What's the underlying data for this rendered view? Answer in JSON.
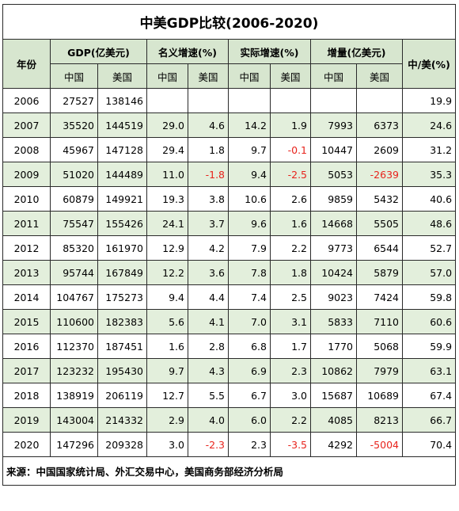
{
  "title": "中美GDP比较(2006-2020)",
  "headers": {
    "year": "年份",
    "gdp": "GDP(亿美元)",
    "nominal": "名义增速(%)",
    "real": "实际增速(%)",
    "increment": "增量(亿美元)",
    "ratio": "中/美(%)",
    "china": "中国",
    "usa": "美国"
  },
  "rows": [
    [
      "2006",
      "27527",
      "138146",
      "",
      "",
      "",
      "",
      "",
      "",
      "19.9"
    ],
    [
      "2007",
      "35520",
      "144519",
      "29.0",
      "4.6",
      "14.2",
      "1.9",
      "7993",
      "6373",
      "24.6"
    ],
    [
      "2008",
      "45967",
      "147128",
      "29.4",
      "1.8",
      "9.7",
      "-0.1",
      "10447",
      "2609",
      "31.2"
    ],
    [
      "2009",
      "51020",
      "144489",
      "11.0",
      "-1.8",
      "9.4",
      "-2.5",
      "5053",
      "-2639",
      "35.3"
    ],
    [
      "2010",
      "60879",
      "149921",
      "19.3",
      "3.8",
      "10.6",
      "2.6",
      "9859",
      "5432",
      "40.6"
    ],
    [
      "2011",
      "75547",
      "155426",
      "24.1",
      "3.7",
      "9.6",
      "1.6",
      "14668",
      "5505",
      "48.6"
    ],
    [
      "2012",
      "85320",
      "161970",
      "12.9",
      "4.2",
      "7.9",
      "2.2",
      "9773",
      "6544",
      "52.7"
    ],
    [
      "2013",
      "95744",
      "167849",
      "12.2",
      "3.6",
      "7.8",
      "1.8",
      "10424",
      "5879",
      "57.0"
    ],
    [
      "2014",
      "104767",
      "175273",
      "9.4",
      "4.4",
      "7.4",
      "2.5",
      "9023",
      "7424",
      "59.8"
    ],
    [
      "2015",
      "110600",
      "182383",
      "5.6",
      "4.1",
      "7.0",
      "3.1",
      "5833",
      "7110",
      "60.6"
    ],
    [
      "2016",
      "112370",
      "187451",
      "1.6",
      "2.8",
      "6.8",
      "1.7",
      "1770",
      "5068",
      "59.9"
    ],
    [
      "2017",
      "123232",
      "195430",
      "9.7",
      "4.3",
      "6.9",
      "2.3",
      "10862",
      "7979",
      "63.1"
    ],
    [
      "2018",
      "138919",
      "206119",
      "12.7",
      "5.5",
      "6.7",
      "3.0",
      "15687",
      "10689",
      "67.4"
    ],
    [
      "2019",
      "143004",
      "214332",
      "2.9",
      "4.0",
      "6.0",
      "2.2",
      "4085",
      "8213",
      "66.7"
    ],
    [
      "2020",
      "147296",
      "209328",
      "3.0",
      "-2.3",
      "2.3",
      "-3.5",
      "4292",
      "-5004",
      "70.4"
    ]
  ],
  "source": "来源：中国国家统计局、外汇交易中心，美国商务部经济分析局",
  "colors": {
    "header_bg": "#d7e6cf",
    "alt_row_bg": "#e3efdc",
    "negative": "#e8231c",
    "border": "#2a2a2a"
  }
}
